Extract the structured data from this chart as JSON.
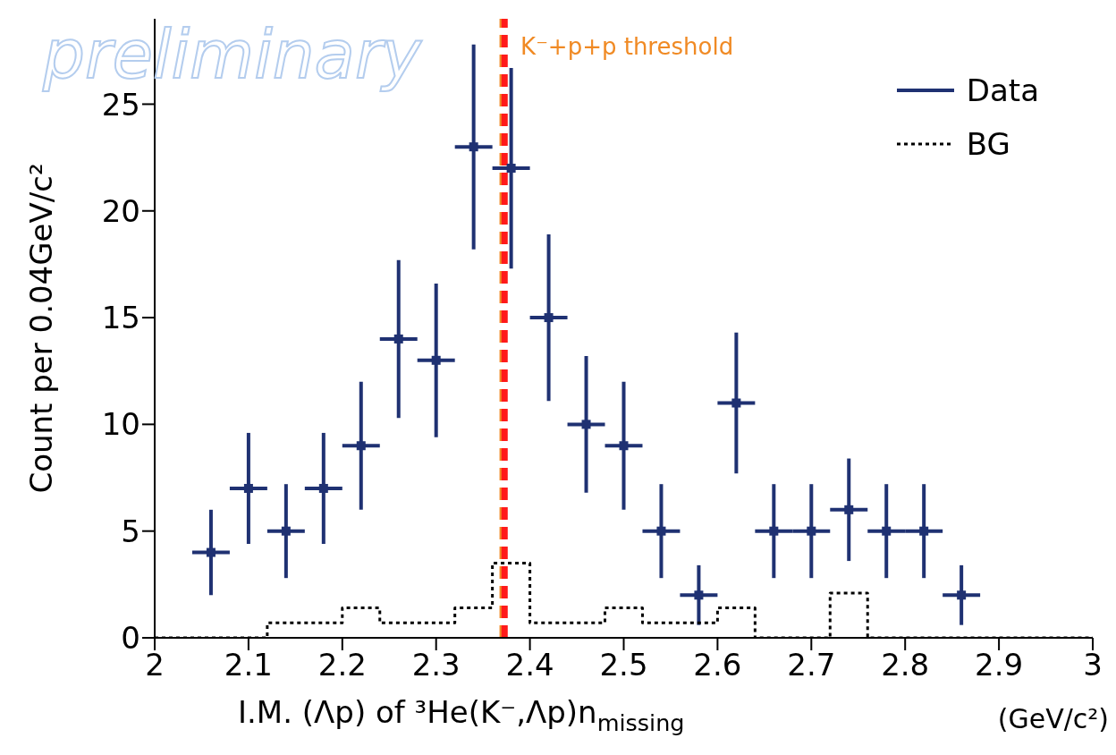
{
  "chart_data": {
    "type": "scatter",
    "xlabel": "I.M. (Λp) of ³He(K⁻,Λp)n$_{missing}$",
    "ylabel": "Count per 0.04GeV/c²",
    "xlim": [
      2,
      3
    ],
    "xticks": [
      2,
      2.1,
      2.2,
      2.3,
      2.4,
      2.5,
      2.6,
      2.7,
      2.8,
      2.9,
      3
    ],
    "ylim": [
      0,
      29
    ],
    "yticks": [
      0,
      5,
      10,
      15,
      20,
      25
    ],
    "legend": "top right",
    "series": [
      {
        "name": "Data",
        "color": "#1f3172",
        "line_style": "solid",
        "x": [
          2.06,
          2.1,
          2.14,
          2.18,
          2.22,
          2.26,
          2.3,
          2.34,
          2.38,
          2.42,
          2.46,
          2.5,
          2.54,
          2.58,
          2.62,
          2.66,
          2.7,
          2.74,
          2.78,
          2.82,
          2.86
        ],
        "values": [
          4,
          7,
          5,
          7,
          9,
          14,
          13,
          23,
          22,
          15,
          10,
          9,
          5,
          2,
          11,
          5,
          5,
          6,
          5,
          5,
          2
        ],
        "errors": [
          2,
          2.6,
          2.2,
          2.6,
          3,
          3.7,
          3.6,
          4.8,
          4.7,
          3.9,
          3.2,
          3,
          2.2,
          1.4,
          3.3,
          2.2,
          2.2,
          2.4,
          2.2,
          2.2,
          1.4
        ],
        "xerrors": [
          0.02,
          0.02,
          0.02,
          0.02,
          0.02,
          0.02,
          0.02,
          0.02,
          0.02,
          0.02,
          0.02,
          0.02,
          0.02,
          0.02,
          0.02,
          0.02,
          0.02,
          0.02,
          0.02,
          0.02,
          0.02
        ]
      },
      {
        "name": "BG",
        "type": "step",
        "color": "#000000",
        "line_style": "dotted",
        "x": [
          2,
          2.12,
          2.2,
          2.24,
          2.32,
          2.36,
          2.4,
          2.48,
          2.52,
          2.6,
          2.64,
          2.72,
          2.76,
          3
        ],
        "values": [
          0,
          0.7,
          1.4,
          0.7,
          1.4,
          3.5,
          0.7,
          1.4,
          0.7,
          1.4,
          0,
          2.1,
          0,
          0
        ]
      }
    ],
    "ref_lines": [
      {
        "axis": "x",
        "value": 2.369,
        "label": "K⁻+p+p threshold",
        "color": "#f08a24",
        "line_style": "dashed"
      },
      {
        "axis": "x",
        "value": 2.373,
        "color": "#ff1a1a",
        "line_style": "dashed"
      }
    ],
    "annotations": [
      "preliminary",
      "(GeV/c²)"
    ]
  }
}
